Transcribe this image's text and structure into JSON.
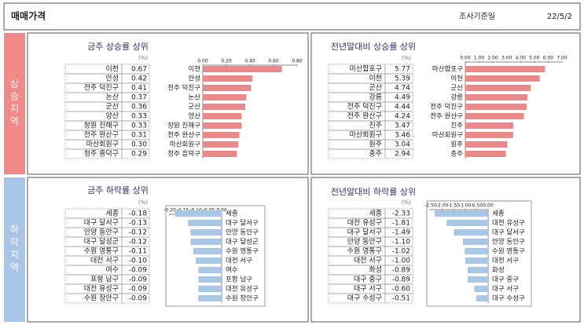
{
  "header": {
    "title": "매매가격",
    "date_label": "조사기준일",
    "date": "22/5/2"
  },
  "side_labels": [
    "상승지역",
    "하락지역"
  ],
  "chart_data": [
    {
      "type": "bar",
      "orientation": "horizontal",
      "title": "금주 상승률 상위",
      "unit": "(%)",
      "color": "#e88a8a",
      "categories": [
        "이천",
        "안성",
        "전주 덕진구",
        "논산",
        "군산",
        "양산",
        "창원 진해구",
        "전주 완산구",
        "마산회원구",
        "청주 흥덕구"
      ],
      "values": [
        0.67,
        0.42,
        0.41,
        0.37,
        0.36,
        0.33,
        0.33,
        0.31,
        0.3,
        0.29
      ],
      "value_labels": [
        "0.67",
        "0.42",
        "0.41",
        "0.37",
        "0.36",
        "0.33",
        "0.33",
        "0.31",
        "0.30",
        "0.29"
      ],
      "xlim": [
        0,
        0.8
      ],
      "xticks": [
        {
          "value": 0,
          "label": "0.00"
        },
        {
          "value": 0.2,
          "label": "0.20"
        },
        {
          "value": 0.4,
          "label": "0.40"
        },
        {
          "value": 0.6,
          "label": "0.60"
        },
        {
          "value": 0.8,
          "label": "0.80"
        }
      ]
    },
    {
      "type": "bar",
      "orientation": "horizontal",
      "title": "전년말대비 상승률 상위",
      "unit": "(%)",
      "color": "#e88a8a",
      "categories": [
        "마산합포구",
        "이천",
        "군산",
        "강릉",
        "전주 덕진구",
        "전주 완산구",
        "진주",
        "마산회원구",
        "원주",
        "충주"
      ],
      "values": [
        5.77,
        5.39,
        4.74,
        4.49,
        4.44,
        4.24,
        3.47,
        3.46,
        3.04,
        2.94
      ],
      "value_labels": [
        "5.77",
        "5.39",
        "4.74",
        "4.49",
        "4.44",
        "4.24",
        "3.47",
        "3.46",
        "3.04",
        "2.94"
      ],
      "xlim": [
        0,
        7
      ],
      "xticks": [
        {
          "value": 0,
          "label": "0.00"
        },
        {
          "value": 1,
          "label": "1.00"
        },
        {
          "value": 2,
          "label": "2.00"
        },
        {
          "value": 3,
          "label": "3.00"
        },
        {
          "value": 4,
          "label": "4.00"
        },
        {
          "value": 5,
          "label": "5.00"
        },
        {
          "value": 6,
          "label": "6.00"
        },
        {
          "value": 7,
          "label": "7.00"
        }
      ]
    },
    {
      "type": "bar",
      "orientation": "horizontal",
      "title": "금주 하락률 상위",
      "unit": "(%)",
      "color": "#a9c6e4",
      "categories": [
        "세종",
        "대구 달서구",
        "안양 동안구",
        "대구 달성군",
        "수원 영통구",
        "대전 서구",
        "여수",
        "포항 남구",
        "대전 유성구",
        "수원 장안구"
      ],
      "values": [
        -0.18,
        -0.13,
        -0.12,
        -0.12,
        -0.11,
        -0.1,
        -0.09,
        -0.09,
        -0.09,
        -0.09
      ],
      "value_labels": [
        "-0.18",
        "-0.13",
        "-0.12",
        "-0.12",
        "-0.11",
        "-0.10",
        "-0.09",
        "-0.09",
        "-0.09",
        "-0.09"
      ],
      "xlim": [
        -0.2,
        0
      ],
      "xticks": [
        {
          "value": -0.2,
          "label": "-0.20"
        },
        {
          "value": -0.15,
          "label": "-0.15"
        },
        {
          "value": -0.1,
          "label": "-0.10"
        },
        {
          "value": -0.05,
          "label": "-0.05"
        },
        {
          "value": 0,
          "label": "0.00"
        }
      ]
    },
    {
      "type": "bar",
      "orientation": "horizontal",
      "title": "전년말대비 하락률 상위",
      "unit": "(%)",
      "color": "#a9c6e4",
      "categories": [
        "세종",
        "대전 유성구",
        "대구 달서구",
        "안양 동안구",
        "수원 영통구",
        "대전 서구",
        "화성",
        "대구 중구",
        "대구 서구",
        "대구 수성구"
      ],
      "values": [
        -2.33,
        -1.81,
        -1.49,
        -1.1,
        -1.02,
        -1.0,
        -0.89,
        -0.89,
        -0.6,
        -0.51
      ],
      "value_labels": [
        "-2.33",
        "-1.81",
        "-1.49",
        "-1.10",
        "-1.02",
        "-1.00",
        "-0.89",
        "-0.89",
        "-0.60",
        "-0.51"
      ],
      "xlim": [
        -2.5,
        0
      ],
      "xticks": [
        {
          "value": -2.5,
          "label": "-2.50"
        },
        {
          "value": -2,
          "label": "-2.00"
        },
        {
          "value": -1.5,
          "label": "-1.50"
        },
        {
          "value": -1,
          "label": "-1.00"
        },
        {
          "value": -0.5,
          "label": "-0.50"
        },
        {
          "value": 0,
          "label": "0.00"
        }
      ]
    }
  ]
}
